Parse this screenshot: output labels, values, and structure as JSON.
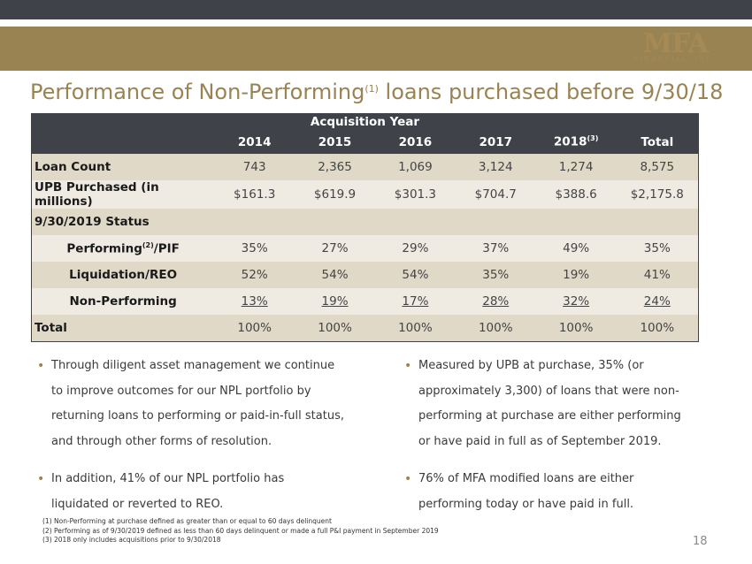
{
  "logo": {
    "mark": "MFA",
    "sub": "FINANCIAL, INC."
  },
  "title": {
    "main": "Performance of Non-Performing",
    "sup": "(1)",
    "rest": " loans purchased before 9/30/18"
  },
  "table": {
    "group_header": "Acquisition Year",
    "columns": [
      "2014",
      "2015",
      "2016",
      "2017",
      "2018",
      "Total"
    ],
    "col_2018_sup": "(3)",
    "rows": {
      "loan_count": {
        "label": "Loan Count",
        "values": [
          "743",
          "2,365",
          "1,069",
          "3,124",
          "1,274",
          "8,575"
        ]
      },
      "upb": {
        "label": "UPB Purchased (in millions)",
        "values": [
          "$161.3",
          "$619.9",
          "$301.3",
          "$704.7",
          "$388.6",
          "$2,175.8"
        ]
      },
      "status": {
        "label": "9/30/2019 Status"
      },
      "performing": {
        "label_a": "Performing",
        "label_sup": "(2)",
        "label_b": "/PIF",
        "values": [
          "35%",
          "27%",
          "29%",
          "37%",
          "49%",
          "35%"
        ]
      },
      "liquidation": {
        "label": "Liquidation/REO",
        "values": [
          "52%",
          "54%",
          "54%",
          "35%",
          "19%",
          "41%"
        ]
      },
      "nonperforming": {
        "label": "Non-Performing",
        "values": [
          "13%",
          "19%",
          "17%",
          "28%",
          "32%",
          "24%"
        ]
      },
      "total": {
        "label": "Total",
        "values": [
          "100%",
          "100%",
          "100%",
          "100%",
          "100%",
          "100%"
        ]
      }
    }
  },
  "bullets_left": [
    "Through diligent asset management we continue to improve outcomes for our NPL portfolio by returning loans to performing or paid-in-full status, and through other forms of resolution.",
    "In addition, 41% of our NPL portfolio has liquidated or reverted to REO."
  ],
  "bullets_right": [
    "Measured by UPB at purchase, 35% (or approximately 3,300) of loans that were non-performing at purchase are either performing or have paid in full as of September 2019.",
    "76% of MFA modified loans are either performing today or have paid in full."
  ],
  "footnotes": [
    "(1)  Non-Performing at purchase defined as greater than or equal to 60 days delinquent",
    "(2)  Performing as of 9/30/2019 defined as less than 60 days delinquent or made a full P&I payment in September 2019",
    "(3)  2018 only includes acquisitions prior to 9/30/2018"
  ],
  "page_number": "18"
}
